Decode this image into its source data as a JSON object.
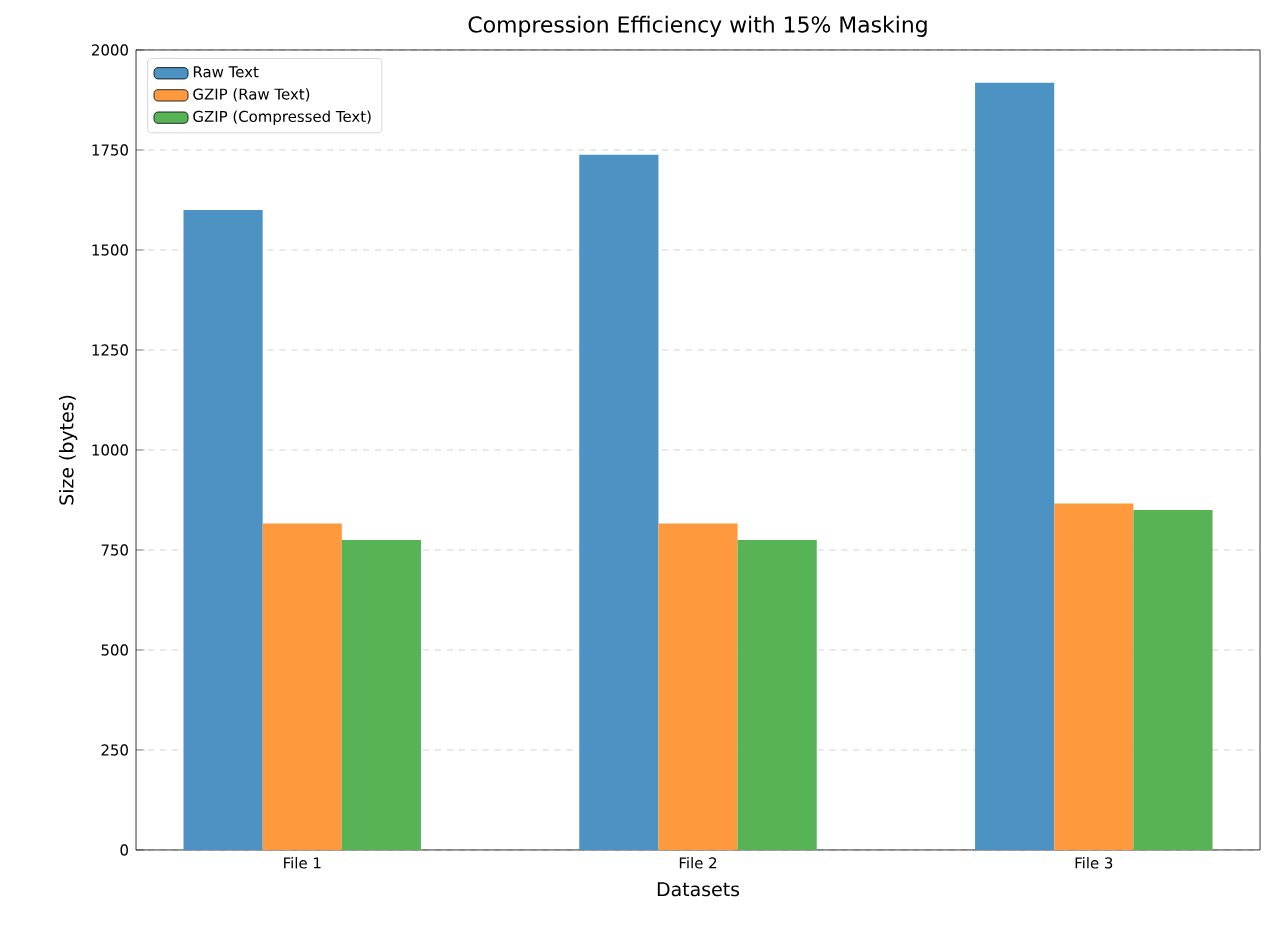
{
  "chart_data": {
    "type": "bar",
    "title": "Compression Efficiency with 15% Masking",
    "xlabel": "Datasets",
    "ylabel": "Size (bytes)",
    "categories": [
      "File 1",
      "File 2",
      "File 3"
    ],
    "series": [
      {
        "name": "Raw Text",
        "color": "#4c92c3",
        "values": [
          1600,
          1738,
          1918
        ]
      },
      {
        "name": "GZIP (Raw Text)",
        "color": "#ff993e",
        "values": [
          816,
          816,
          866
        ]
      },
      {
        "name": "GZIP (Compressed Text)",
        "color": "#56b356",
        "values": [
          775,
          775,
          850
        ]
      }
    ],
    "ylim": [
      0,
      2000
    ],
    "yticks": [
      0,
      250,
      500,
      750,
      1000,
      1250,
      1500,
      1750,
      2000
    ],
    "grid": "y",
    "legend": "top left"
  }
}
